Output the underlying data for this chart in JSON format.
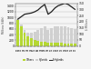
{
  "years": [
    2000,
    2001,
    2002,
    2003,
    2004,
    2005,
    2006,
    2007,
    2008,
    2009,
    2010,
    2011,
    2012,
    2013,
    2014,
    2015,
    2016,
    2017
  ],
  "others": [
    900,
    700,
    480,
    350,
    270,
    210,
    180,
    160,
    150,
    130,
    120,
    110,
    110,
    110,
    100,
    100,
    100,
    90
  ],
  "hybrids": [
    30,
    50,
    80,
    120,
    190,
    280,
    380,
    480,
    540,
    440,
    500,
    580,
    590,
    570,
    580,
    560,
    520,
    490
  ],
  "line": [
    220,
    240,
    260,
    265,
    270,
    280,
    295,
    320,
    340,
    260,
    280,
    310,
    330,
    340,
    350,
    340,
    320,
    300
  ],
  "bar_color_others": "#b5d832",
  "bar_color_hybrids": "#d0d0d0",
  "line_color": "#222222",
  "ylim_left": [
    0,
    1500
  ],
  "ylim_right": [
    0,
    350
  ],
  "yticks_left": [
    0,
    200,
    400,
    600,
    800,
    1000,
    1200,
    1400
  ],
  "yticks_right": [
    0,
    50,
    100,
    150,
    200,
    250,
    300,
    350
  ],
  "ylabel_left": "Millions (kWh)",
  "ylabel_right": "$ Millions",
  "legend_labels": [
    "Others",
    "Hybrids",
    "E-Hybrids"
  ],
  "bg_color": "#f5f5f5",
  "grid_color": "#bbbbbb"
}
